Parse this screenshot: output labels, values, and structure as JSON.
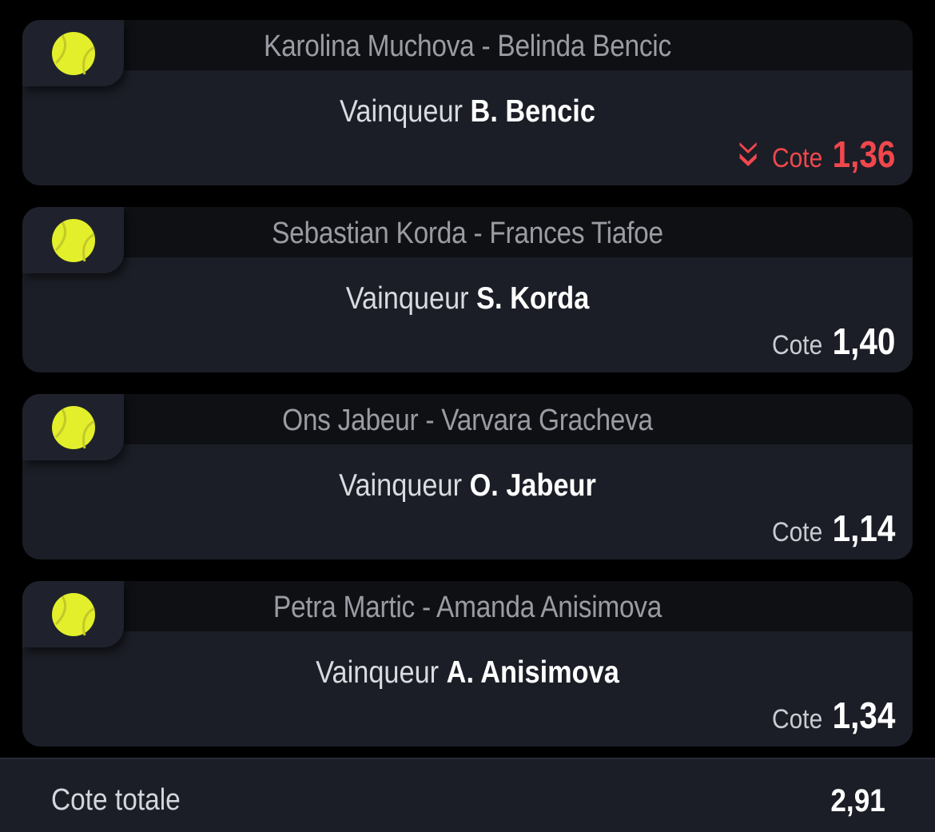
{
  "colors": {
    "background": "#000000",
    "card": "#1b1e26",
    "header": "#0f1014",
    "ball": "#e3ef2a",
    "odds_down": "#f0474d"
  },
  "bets": [
    {
      "match": "Karolina Muchova - Belinda Bencic",
      "label": "Vainqueur",
      "pick": "B. Bencic",
      "odds_label": "Cote",
      "odds": "1,36",
      "trend": "down",
      "icon": "tennis-ball-icon"
    },
    {
      "match": "Sebastian Korda - Frances Tiafoe",
      "label": "Vainqueur",
      "pick": "S. Korda",
      "odds_label": "Cote",
      "odds": "1,40",
      "icon": "tennis-ball-icon"
    },
    {
      "match": "Ons Jabeur - Varvara Gracheva",
      "label": "Vainqueur",
      "pick": "O. Jabeur",
      "odds_label": "Cote",
      "odds": "1,14",
      "icon": "tennis-ball-icon"
    },
    {
      "match": "Petra Martic - Amanda Anisimova",
      "label": "Vainqueur",
      "pick": "A. Anisimova",
      "odds_label": "Cote",
      "odds": "1,34",
      "icon": "tennis-ball-icon"
    }
  ],
  "footer": {
    "label": "Cote totale",
    "value": "2,91"
  }
}
